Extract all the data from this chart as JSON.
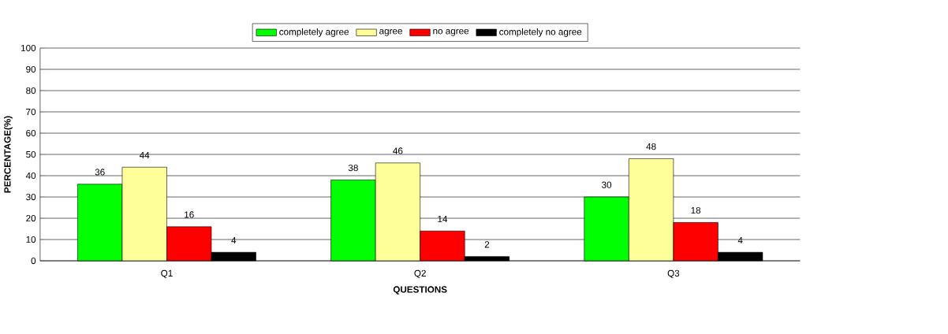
{
  "chart_data": {
    "type": "bar",
    "xlabel": "QUESTIONS",
    "ylabel": "PERCENTAGE(%)",
    "categories": [
      "Q1",
      "Q2",
      "Q3"
    ],
    "series": [
      {
        "name": "completely agree",
        "color": "#00ff00",
        "values": [
          36,
          38,
          30
        ]
      },
      {
        "name": "agree",
        "color": "#ffff99",
        "values": [
          44,
          46,
          48
        ]
      },
      {
        "name": "no agree",
        "color": "#ff0000",
        "values": [
          16,
          14,
          18
        ]
      },
      {
        "name": "completely no agree",
        "color": "#000000",
        "values": [
          4,
          2,
          4
        ]
      }
    ],
    "ylim": [
      0,
      100
    ],
    "yticks": [
      0,
      10,
      20,
      30,
      40,
      50,
      60,
      70,
      80,
      90,
      100
    ],
    "grid": "y",
    "legend": "top",
    "data_labels": true
  }
}
